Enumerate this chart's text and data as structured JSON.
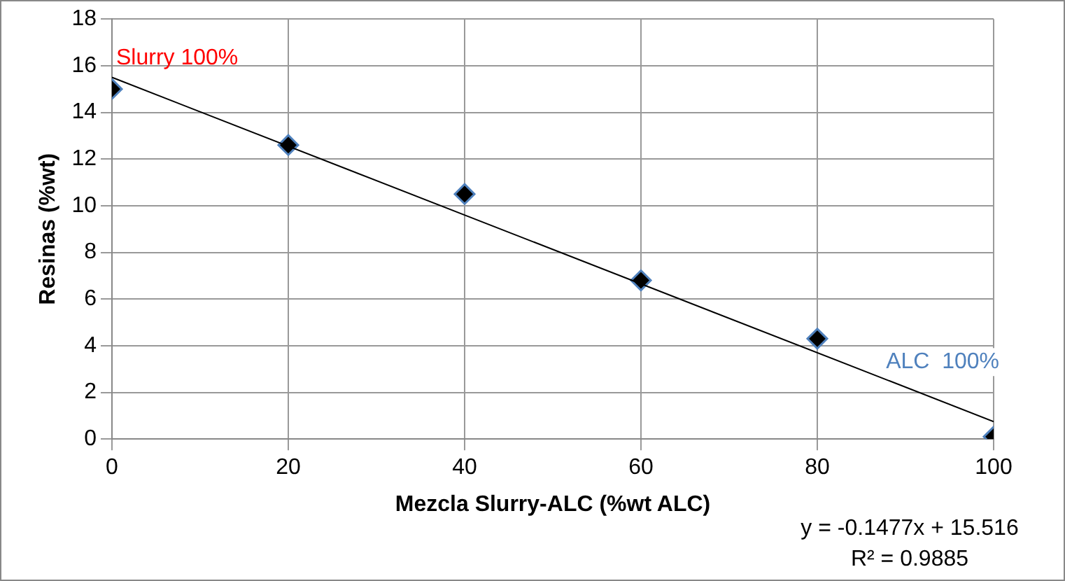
{
  "chart_data": {
    "type": "scatter",
    "xlabel": "Mezcla Slurry-ALC (%wt ALC)",
    "ylabel": "Resinas (%wt)",
    "x": [
      0,
      20,
      40,
      60,
      80,
      100
    ],
    "series": [
      {
        "color": "#000000",
        "values": [
          15,
          12.6,
          10.5,
          6.8,
          4.3,
          0.1
        ],
        "marker": "diamond"
      },
      {
        "type": "line",
        "color": "#000000",
        "x": [
          0,
          100
        ],
        "values": [
          15.5,
          0.75
        ],
        "marker": "none"
      }
    ],
    "xlim": [
      0,
      100
    ],
    "xticks": [
      0,
      20,
      40,
      60,
      80,
      100
    ],
    "ylim": [
      0,
      18
    ],
    "yticks": [
      0,
      2,
      4,
      6,
      8,
      10,
      12,
      14,
      16,
      18
    ],
    "grid": true,
    "legend": false,
    "annotations": [
      "Slurry 100%",
      "ALC  100%",
      "y = -0.1477x + 15.516",
      "R² = 0.9885"
    ]
  }
}
